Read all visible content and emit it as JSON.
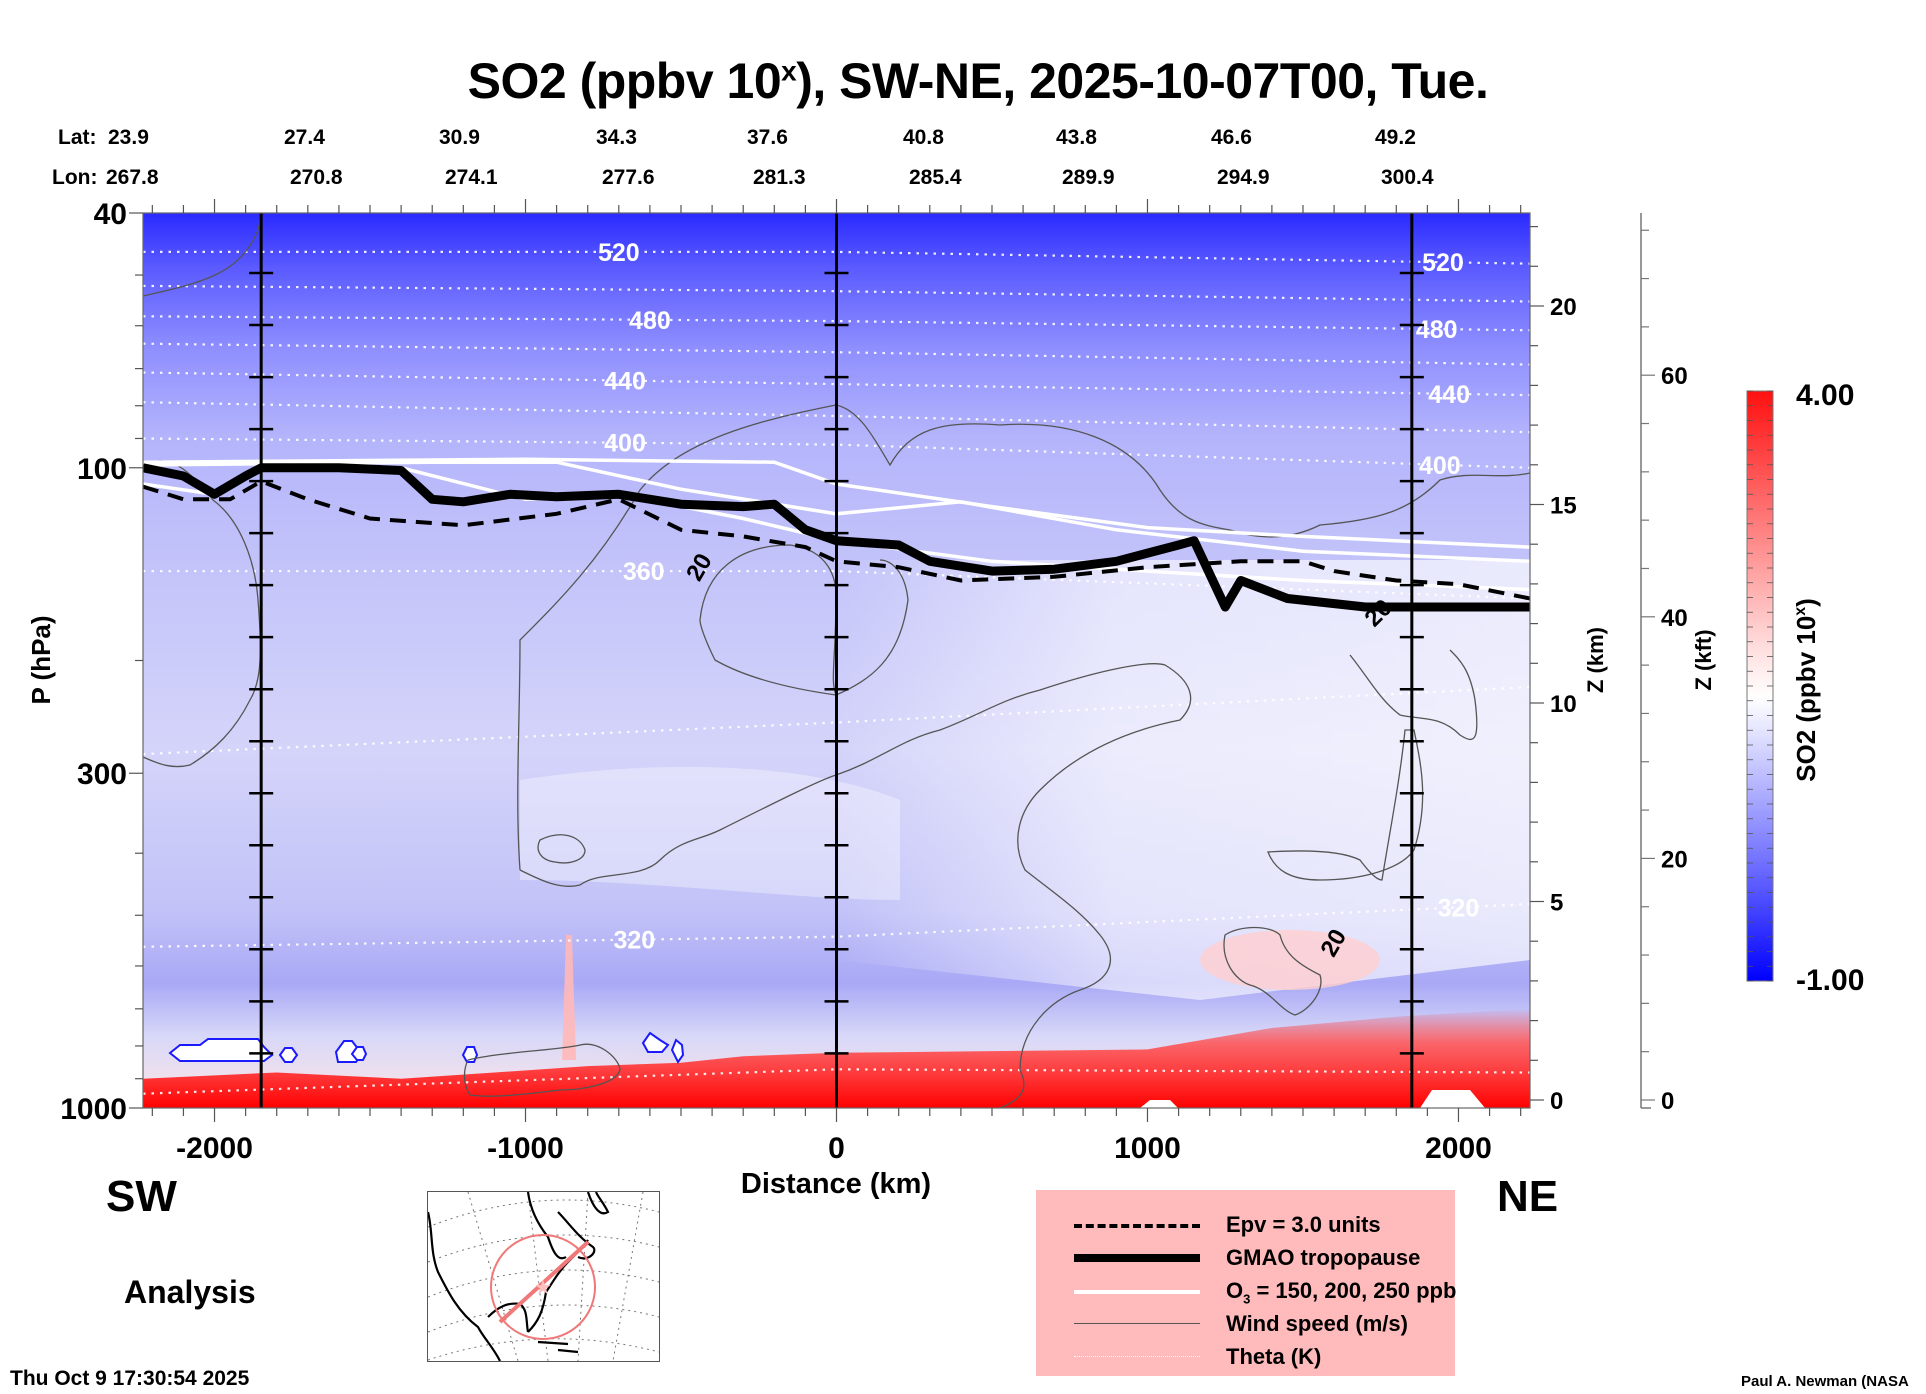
{
  "title": {
    "prefix": "SO2 (ppbv 10",
    "superscript": "x",
    "suffix": "), SW-NE, 2025-10-07T00, Tue."
  },
  "coordinates": {
    "lat_label": "Lat:",
    "lon_label": "Lon:",
    "lat": [
      "23.9",
      "27.4",
      "30.9",
      "34.3",
      "37.6",
      "40.8",
      "43.8",
      "46.6",
      "49.2"
    ],
    "lon": [
      "267.8",
      "270.8",
      "274.1",
      "277.6",
      "281.3",
      "285.4",
      "289.9",
      "294.9",
      "300.4"
    ]
  },
  "directions": {
    "left": "SW",
    "right": "NE"
  },
  "run_type": "Analysis",
  "timestamp": "Thu Oct  9 17:30:54 2025",
  "credit": "Paul A. Newman (NASA",
  "colors": {
    "high": "#ff0000",
    "mid": "#ffffff",
    "low": "#0000ff",
    "legend_bg": "#ffbbbb",
    "map_track": "#f07878"
  },
  "legend": [
    {
      "style": "dashed",
      "label": "Epv = 3.0 units"
    },
    {
      "style": "thick",
      "label": "GMAO tropopause"
    },
    {
      "style": "white",
      "label_main": "O",
      "label_sub": "3",
      "label_rest": " = 150, 200, 250 ppb"
    },
    {
      "style": "thin",
      "label": "Wind speed (m/s)"
    },
    {
      "style": "dotted",
      "label": "Theta (K)"
    }
  ],
  "chart_data": {
    "type": "heatmap",
    "title": "SO2 (ppbv 10^x), SW-NE, 2025-10-07T00, Tue.",
    "xlabel": "Distance (km)",
    "ylabel": "P (hPa)",
    "y2label": "Z (km)",
    "y3label": "Z (kft)",
    "colorbar_label": "SO2 (ppbv 10x)",
    "xlim": [
      -2230,
      2230
    ],
    "ylim": [
      1000,
      40
    ],
    "yscale": "log",
    "x_ticks": [
      -2000,
      -1000,
      0,
      1000,
      2000
    ],
    "x_tick_labels": [
      "-2000",
      "-1000",
      "0",
      "1000",
      "2000"
    ],
    "y_ticks": [
      40,
      100,
      300,
      1000
    ],
    "y_tick_labels": [
      "40",
      "100",
      "300",
      "1000"
    ],
    "zkm_ticks": [
      0,
      5,
      10,
      15,
      20
    ],
    "zkft_ticks": [
      0,
      20,
      40,
      60
    ],
    "colorbar": {
      "min": -1.0,
      "max": 4.0,
      "min_label": "-1.00",
      "max_label": "4.00",
      "levels": 40
    },
    "reference_lines_km": [
      -1850,
      0,
      1850
    ],
    "theta_levels": [
      {
        "value": 520,
        "label": "520",
        "p": [
          46,
          46,
          48
        ],
        "label_positions_km": [
          -700,
          1950
        ]
      },
      {
        "value": 500,
        "label": "",
        "p": [
          52,
          53,
          55
        ]
      },
      {
        "value": 480,
        "label": "480",
        "p": [
          58,
          59,
          61
        ],
        "label_positions_km": [
          -600,
          1930
        ]
      },
      {
        "value": 460,
        "label": "",
        "p": [
          64,
          66,
          69
        ]
      },
      {
        "value": 440,
        "label": "440",
        "p": [
          71,
          74,
          77
        ],
        "label_positions_km": [
          -680,
          1970
        ]
      },
      {
        "value": 420,
        "label": "",
        "p": [
          79,
          83,
          88
        ]
      },
      {
        "value": 400,
        "label": "400",
        "p": [
          90,
          92,
          100
        ],
        "label_positions_km": [
          -680,
          1940
        ]
      },
      {
        "value": 360,
        "label": "360",
        "p": [
          145,
          145,
          160
        ],
        "label_positions_km": [
          -620
        ]
      },
      {
        "value": 340,
        "label": "",
        "p": [
          280,
          250,
          220
        ]
      },
      {
        "value": 320,
        "label": "320",
        "p": [
          560,
          540,
          480
        ],
        "label_positions_km": [
          -650,
          2000
        ]
      },
      {
        "value": 300,
        "label": "",
        "p": [
          950,
          870,
          880
        ]
      }
    ],
    "tropopause_p": [
      [
        -2230,
        100
      ],
      [
        -2100,
        103
      ],
      [
        -2000,
        110
      ],
      [
        -1900,
        103
      ],
      [
        -1850,
        100
      ],
      [
        -1600,
        100
      ],
      [
        -1400,
        101
      ],
      [
        -1300,
        112
      ],
      [
        -1200,
        113
      ],
      [
        -1050,
        110
      ],
      [
        -900,
        111
      ],
      [
        -700,
        110
      ],
      [
        -500,
        114
      ],
      [
        -300,
        115
      ],
      [
        -200,
        114
      ],
      [
        -100,
        125
      ],
      [
        0,
        130
      ],
      [
        200,
        132
      ],
      [
        300,
        140
      ],
      [
        500,
        145
      ],
      [
        700,
        144
      ],
      [
        900,
        140
      ],
      [
        1100,
        132
      ],
      [
        1150,
        130
      ],
      [
        1250,
        165
      ],
      [
        1300,
        150
      ],
      [
        1450,
        160
      ],
      [
        1700,
        165
      ],
      [
        2230,
        165
      ]
    ],
    "epv_p": [
      [
        -2230,
        107
      ],
      [
        -2100,
        112
      ],
      [
        -1950,
        112
      ],
      [
        -1850,
        105
      ],
      [
        -1700,
        112
      ],
      [
        -1500,
        120
      ],
      [
        -1200,
        123
      ],
      [
        -900,
        118
      ],
      [
        -700,
        112
      ],
      [
        -500,
        125
      ],
      [
        -300,
        128
      ],
      [
        -100,
        133
      ],
      [
        0,
        140
      ],
      [
        200,
        143
      ],
      [
        400,
        150
      ],
      [
        700,
        148
      ],
      [
        1000,
        143
      ],
      [
        1300,
        140
      ],
      [
        1500,
        140
      ],
      [
        1600,
        145
      ],
      [
        1800,
        150
      ],
      [
        2000,
        152
      ],
      [
        2230,
        160
      ]
    ],
    "ozone_p": [
      [
        [
          -2230,
          98
        ],
        [
          -1000,
          97
        ],
        [
          -200,
          98
        ],
        [
          0,
          106
        ],
        [
          500,
          115
        ],
        [
          1000,
          124
        ],
        [
          1500,
          128
        ],
        [
          2230,
          133
        ]
      ],
      [
        [
          -2230,
          99
        ],
        [
          -1300,
          98
        ],
        [
          -900,
          98
        ],
        [
          -500,
          108
        ],
        [
          0,
          118
        ],
        [
          400,
          113
        ],
        [
          900,
          125
        ],
        [
          1500,
          135
        ],
        [
          2230,
          140
        ]
      ],
      [
        [
          -2230,
          106
        ],
        [
          -2000,
          110
        ],
        [
          -1850,
          100
        ],
        [
          -1400,
          100
        ],
        [
          -1000,
          112
        ],
        [
          -700,
          110
        ],
        [
          -300,
          120
        ],
        [
          0,
          130
        ],
        [
          500,
          140
        ],
        [
          1000,
          145
        ],
        [
          1500,
          150
        ],
        [
          2230,
          155
        ]
      ]
    ],
    "wind_speed_contour_label": "20",
    "so2_notes": "Blue (negative exponent, ~-1 to 0) through most of the troposphere/stratosphere; strongest blue at top (40 hPa); white near 200-500 hPa on NE side; red (up to ~4) boundary layer below ~850 hPa, strongest east of 0 km"
  },
  "map": {
    "description": "North America inset with SW-NE cross-section track and range circle"
  }
}
